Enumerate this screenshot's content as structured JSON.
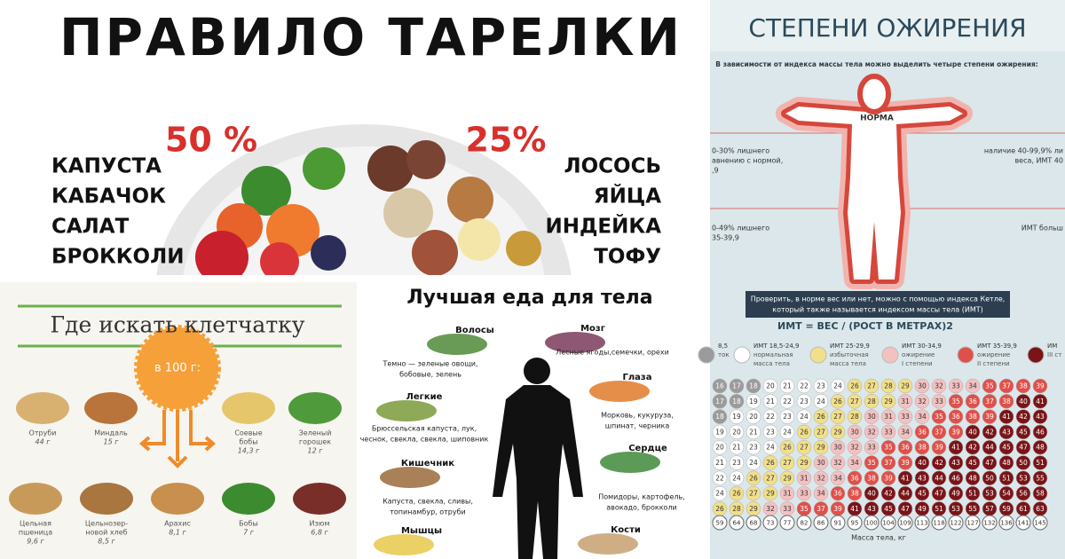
{
  "plate_rule": {
    "title": "ПРАВИЛО ТАРЕЛКИ",
    "left_percent": "50 %",
    "right_percent": "25%",
    "left_items": [
      "КАПУСТА",
      "КАБАЧОК",
      "САЛАТ",
      "БРОККОЛИ"
    ],
    "right_items": [
      "ЛОСОСЬ",
      "ЯЙЦА",
      "ИНДЕЙКА",
      "ТОФУ"
    ]
  },
  "fiber": {
    "title": "Где искать клетчатку",
    "badge": "в 100 г:",
    "items": [
      {
        "name": [
          "Отруби"
        ],
        "amount": "44 г"
      },
      {
        "name": [
          "Миндаль"
        ],
        "amount": "15 г"
      },
      {
        "name": [
          "Соевые",
          "бобы"
        ],
        "amount": "14,3 г"
      },
      {
        "name": [
          "Зеленый",
          "горошек"
        ],
        "amount": "12 г"
      },
      {
        "name": [
          "Цельная",
          "пшеница"
        ],
        "amount": "9,6 г"
      },
      {
        "name": [
          "Цельнозер-",
          "новой хлеб"
        ],
        "amount": "8,5 г"
      },
      {
        "name": [
          "Арахис"
        ],
        "amount": "8,1 г"
      },
      {
        "name": [
          "Бобы"
        ],
        "amount": "7 г"
      },
      {
        "name": [
          "Изюм"
        ],
        "amount": "6,8 г"
      }
    ]
  },
  "body_food": {
    "title": "Лучшая еда для тела",
    "items": [
      {
        "label": "Волосы",
        "foods": [
          "Темно — зеленые овощи,",
          "бобовые, зелень"
        ]
      },
      {
        "label": "Мозг",
        "foods": [
          "Лесные ягоды,семечки, орехи"
        ]
      },
      {
        "label": "Легкие",
        "foods": [
          "Брюссельская капуста, лук,",
          "чеснок, свекла, свекла, шиповник"
        ]
      },
      {
        "label": "Глаза",
        "foods": [
          "Морковь, кукуруза,",
          "шпинат, черника"
        ]
      },
      {
        "label": "Кишечник",
        "foods": [
          "Капуста, свекла, сливы,",
          "топинамбур, отруби"
        ]
      },
      {
        "label": "Сердце",
        "foods": [
          "Помидоры, картофель,",
          "авокадо, брокколи"
        ]
      },
      {
        "label": "Мышцы",
        "foods": []
      },
      {
        "label": "Кости",
        "foods": []
      }
    ]
  },
  "obesity": {
    "title": "СТЕПЕНИ ОЖИРЕНИЯ",
    "intro": "В зависимости от индекса массы тела можно выделить четыре степени ожирения:",
    "figure_label": "НОРМА",
    "side_notes": [
      {
        "lines": [
          "0-30% лишнего",
          "авнению с нормой,",
          ",9"
        ]
      },
      {
        "lines": [
          "0-49% лишнего",
          "35-39,9"
        ]
      },
      {
        "lines": [
          "наличие 40-99,9% ли",
          "веса, ИМТ 40"
        ]
      },
      {
        "lines": [
          "ИМТ больш"
        ]
      }
    ],
    "note": [
      "Проверить, в норме вес или нет, можно с помощью индекса Кетле,",
      "который также называется индексом массы тела (ИМТ)"
    ],
    "formula": "ИМТ = ВЕС / (РОСТ В МЕТРАХ)2",
    "legend": [
      {
        "lines": [
          "8,5",
          "ток"
        ],
        "color": "#9b9b9b"
      },
      {
        "lines": [
          "ИМТ 18,5-24,9",
          "нормальная",
          "масса тела"
        ],
        "color": "#ffffff"
      },
      {
        "lines": [
          "ИМТ 25-29,9",
          "избыточная",
          "масса тела"
        ],
        "color": "#f2df8a"
      },
      {
        "lines": [
          "ИМТ 30-34,9",
          "ожирение",
          "I степени"
        ],
        "color": "#f4c1c1"
      },
      {
        "lines": [
          "ИМТ 35-39,9",
          "ожирение",
          "II степени"
        ],
        "color": "#e0504a"
      },
      {
        "lines": [
          "ИМ",
          "III ст"
        ],
        "color": "#7a1418"
      }
    ],
    "bmi_rows": [
      [
        16,
        17,
        18,
        20,
        21,
        22,
        23,
        24,
        26,
        27,
        28,
        29,
        30,
        32,
        33,
        34,
        35,
        37,
        38,
        39
      ],
      [
        17,
        18,
        19,
        21,
        22,
        23,
        24,
        26,
        27,
        28,
        29,
        31,
        32,
        33,
        35,
        36,
        37,
        38,
        40,
        41
      ],
      [
        18,
        19,
        20,
        22,
        23,
        24,
        26,
        27,
        28,
        30,
        31,
        33,
        34,
        35,
        36,
        38,
        39,
        41,
        42,
        43
      ],
      [
        19,
        20,
        21,
        23,
        24,
        26,
        27,
        29,
        30,
        32,
        33,
        34,
        36,
        37,
        39,
        40,
        42,
        43,
        45,
        46
      ],
      [
        20,
        21,
        23,
        24,
        26,
        27,
        29,
        30,
        32,
        33,
        35,
        36,
        38,
        39,
        41,
        42,
        44,
        45,
        47,
        48
      ],
      [
        21,
        23,
        24,
        26,
        27,
        29,
        30,
        32,
        34,
        35,
        37,
        39,
        40,
        42,
        43,
        45,
        47,
        48,
        50,
        51
      ],
      [
        22,
        24,
        26,
        27,
        29,
        31,
        32,
        34,
        36,
        38,
        39,
        41,
        43,
        44,
        46,
        48,
        50,
        51,
        53,
        55
      ],
      [
        24,
        26,
        27,
        29,
        31,
        33,
        34,
        36,
        38,
        40,
        42,
        44,
        45,
        47,
        49,
        51,
        53,
        54,
        56,
        58
      ],
      [
        26,
        28,
        29,
        32,
        33,
        35,
        37,
        39,
        41,
        43,
        45,
        47,
        49,
        51,
        53,
        55,
        57,
        59,
        61,
        63
      ]
    ],
    "weights": [
      59,
      64,
      68,
      73,
      77,
      82,
      86,
      91,
      95,
      100,
      104,
      109,
      113,
      118,
      122,
      127,
      132,
      136,
      141,
      145
    ],
    "weight_label": "Масса тела, кг"
  }
}
